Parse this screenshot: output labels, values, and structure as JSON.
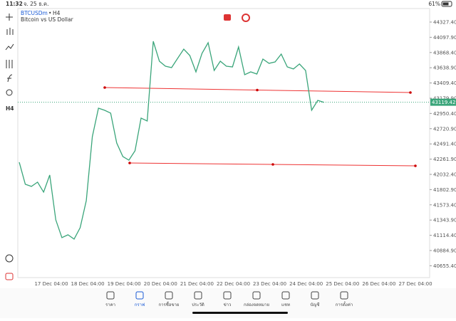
{
  "status": {
    "time": "11:32",
    "date": "จ. 25 ธ.ค.",
    "battery": "61%"
  },
  "header": {
    "symbol": "BTCUSDm",
    "timeframe": "H4",
    "description": "Bitcoin vs US Dollar"
  },
  "toolbar": {
    "timeframe": "H4"
  },
  "chart_data": {
    "type": "line",
    "color": "#3aa57a",
    "values": [
      42215.6,
      41883,
      41851,
      41915,
      41765,
      42022,
      41347,
      41079,
      41122,
      41057,
      41229,
      41636,
      42601,
      43030,
      42998,
      42955,
      42505,
      42301,
      42247,
      42387,
      42880,
      42837,
      44038,
      43737,
      43662,
      43641,
      43780,
      43920,
      43823,
      43577,
      43855,
      44016,
      43598,
      43737,
      43662,
      43652,
      43952,
      43534,
      43577,
      43544,
      43770,
      43705,
      43727,
      43845,
      43652,
      43620,
      43695,
      43598,
      42998,
      43148,
      43119
    ],
    "ylim": [
      40477,
      44531
    ],
    "yticks": [
      {
        "value": 44327.4,
        "label": "44327.40"
      },
      {
        "value": 44097.9,
        "label": "44097.90"
      },
      {
        "value": 43868.4,
        "label": "43868.40"
      },
      {
        "value": 43638.9,
        "label": "43638.90"
      },
      {
        "value": 43409.4,
        "label": "43409.40"
      },
      {
        "value": 43179.9,
        "label": "43179.90"
      },
      {
        "value": 42950.4,
        "label": "42950.40"
      },
      {
        "value": 42720.9,
        "label": "42720.90"
      },
      {
        "value": 42491.4,
        "label": "42491.40"
      },
      {
        "value": 42261.9,
        "label": "42261.90"
      },
      {
        "value": 42032.4,
        "label": "42032.40"
      },
      {
        "value": 41802.9,
        "label": "41802.90"
      },
      {
        "value": 41573.4,
        "label": "41573.40"
      },
      {
        "value": 41343.9,
        "label": "41343.90"
      },
      {
        "value": 41114.4,
        "label": "41114.40"
      },
      {
        "value": 40884.9,
        "label": "40884.90"
      },
      {
        "value": 40655.4,
        "label": "40655.40"
      }
    ],
    "x_labels": [
      "17 Dec 04:00",
      "18 Dec 04:00",
      "19 Dec 04:00",
      "20 Dec 04:00",
      "21 Dec 04:00",
      "22 Dec 04:00",
      "23 Dec 04:00",
      "24 Dec 04:00",
      "25 Dec 04:00",
      "26 Dec 04:00",
      "27 Dec 04:00"
    ],
    "last_price": 43119.42
  },
  "nav": [
    "ราคา",
    "กราฟ",
    "การซื้อขาย",
    "ประวัติ",
    "ข่าว",
    "กล่องจดหมาย",
    "แชท",
    "บัญชี",
    "การตั้งค่า"
  ]
}
